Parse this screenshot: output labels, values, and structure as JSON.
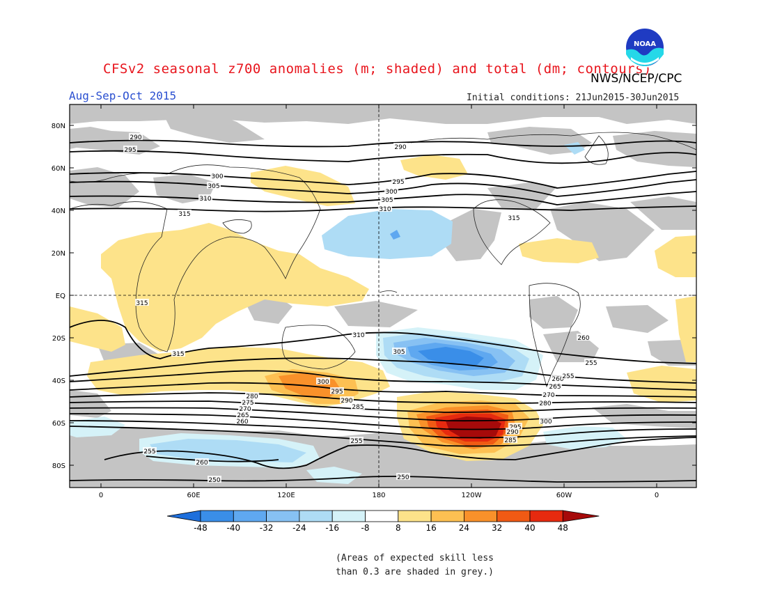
{
  "header": {
    "title": "CFSv2 seasonal z700 anomalies (m; shaded) and total (dm; contours)",
    "agency": "NWS/NCEP/CPC",
    "season": "Aug-Sep-Oct 2015",
    "initial_conditions": "Initial conditions: 21Jun2015-30Jun2015",
    "logo_text": "NOAA"
  },
  "axes": {
    "lat_labels": [
      "80N",
      "60N",
      "40N",
      "20N",
      "EQ",
      "20S",
      "40S",
      "60S",
      "80S"
    ],
    "lon_labels": [
      "0",
      "60E",
      "120E",
      "180",
      "120W",
      "60W",
      "0"
    ]
  },
  "colorbar": {
    "ticks": [
      "-48",
      "-40",
      "-32",
      "-24",
      "-16",
      "-8",
      "8",
      "16",
      "24",
      "32",
      "40",
      "48"
    ],
    "colors": [
      "#1e6fdc",
      "#3a8ee8",
      "#5fa8f0",
      "#87c1f3",
      "#aedcf5",
      "#d5f2f8",
      "#ffffff",
      "#fde38a",
      "#fdc052",
      "#f9912a",
      "#f05a14",
      "#e62a0f",
      "#a60a0a"
    ]
  },
  "contour_labels": [
    "290",
    "295",
    "300",
    "305",
    "310",
    "315",
    "290",
    "295",
    "300",
    "305",
    "310",
    "315",
    "315",
    "315",
    "310",
    "305",
    "300",
    "295",
    "290",
    "285",
    "280",
    "275",
    "270",
    "265",
    "260",
    "255",
    "250",
    "300",
    "295",
    "290",
    "285",
    "280",
    "270",
    "265",
    "260",
    "255",
    "255",
    "260",
    "260",
    "255",
    "250"
  ],
  "footnote": {
    "line1": "(Areas of expected skill less",
    "line2": "than 0.3 are shaded in grey.)"
  },
  "colors": {
    "title": "#e8141c",
    "season": "#2a4fd0",
    "low_skill_grey": "#c4c4c4"
  }
}
